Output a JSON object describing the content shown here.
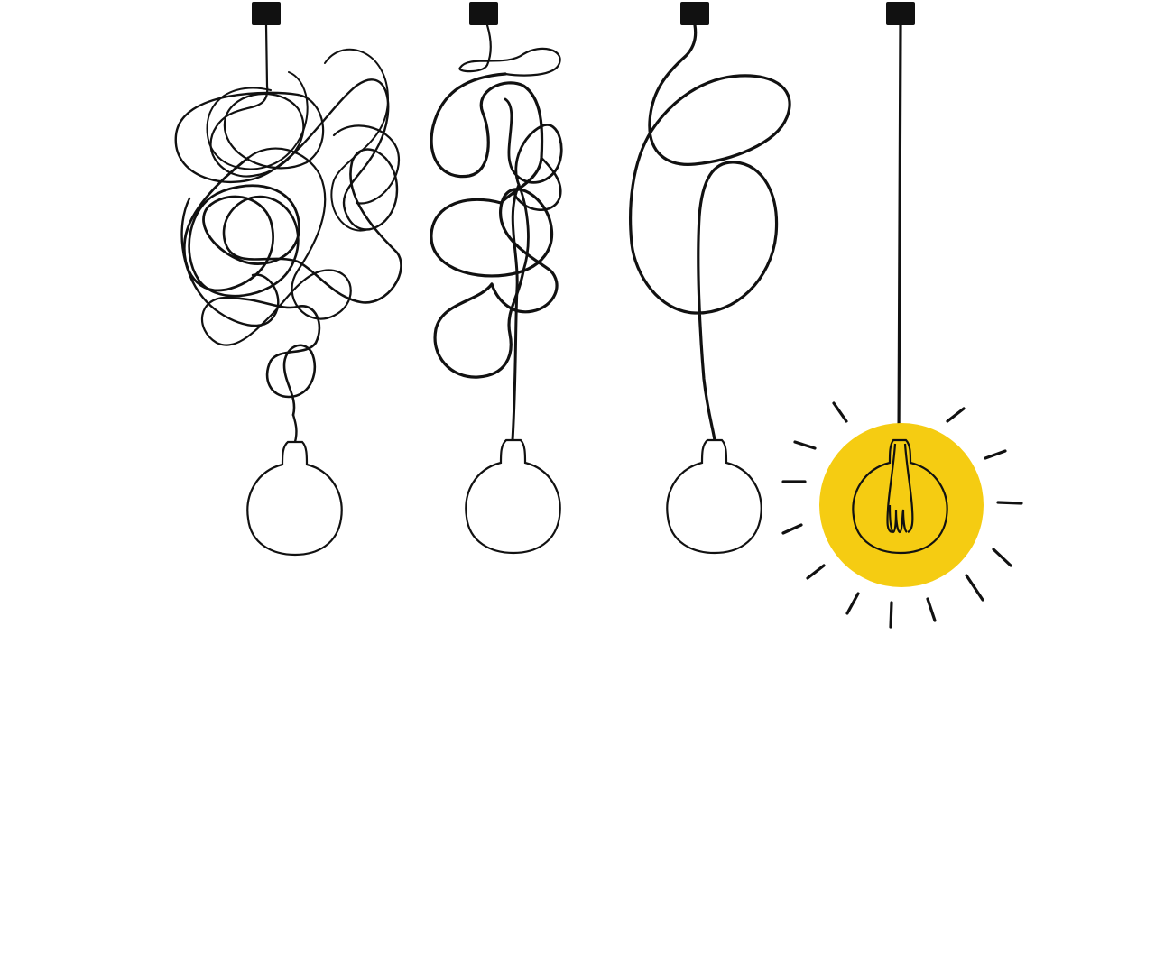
{
  "illustration": {
    "subject": "tangled-to-straight-cord-pendant-lights",
    "bulbs": [
      {
        "state": "off",
        "cord": "very-tangled"
      },
      {
        "state": "off",
        "cord": "tangled"
      },
      {
        "state": "off",
        "cord": "slightly-looped"
      },
      {
        "state": "on",
        "cord": "straight"
      }
    ],
    "colors": {
      "background": "#ffffff",
      "line": "#111111",
      "glow": "#f5cc12"
    }
  }
}
